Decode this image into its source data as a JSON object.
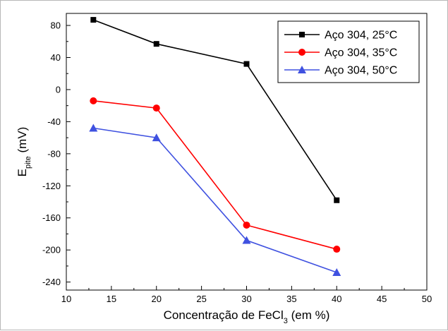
{
  "chart_data": {
    "type": "line",
    "title": "",
    "xlabel": {
      "main": "Concentração de FeCl",
      "sub": "3",
      "suffix": " (em %)"
    },
    "ylabel": {
      "main": "E",
      "sub": "pite",
      "suffix": " (mV)"
    },
    "xlim": [
      10,
      50
    ],
    "ylim": [
      -250,
      95
    ],
    "x_ticks": [
      10,
      15,
      20,
      25,
      30,
      35,
      40,
      45,
      50
    ],
    "y_ticks": [
      -240,
      -200,
      -160,
      -120,
      -80,
      -40,
      0,
      40,
      80
    ],
    "x": [
      13,
      20,
      30,
      40
    ],
    "series": [
      {
        "name": "Aço 304, 25°C",
        "values": [
          87,
          57,
          32,
          -138
        ],
        "color": "#000000",
        "marker": "square"
      },
      {
        "name": "Aço 304, 35°C",
        "values": [
          -14,
          -23,
          -169,
          -199
        ],
        "color": "#ff0000",
        "marker": "circle"
      },
      {
        "name": "Aço 304, 50°C",
        "values": [
          -48,
          -60,
          -188,
          -228
        ],
        "color": "#3f51e0",
        "marker": "triangle"
      }
    ],
    "grid": false,
    "legend_position": "top-right"
  }
}
